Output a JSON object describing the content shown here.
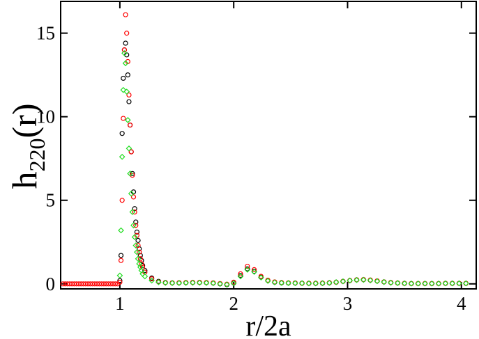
{
  "chart_data": {
    "type": "scatter",
    "xlabel": "r/2a",
    "ylabel": {
      "main": "h",
      "sub": "220",
      "tail": "(r)"
    },
    "xlim": [
      0.48,
      4.13
    ],
    "ylim": [
      -0.3,
      16.9
    ],
    "xticks": [
      1,
      2,
      3,
      4
    ],
    "yticks": [
      0,
      5,
      10,
      15
    ],
    "x": [
      0.5,
      0.52,
      0.54,
      0.56,
      0.58,
      0.6,
      0.62,
      0.64,
      0.66,
      0.68,
      0.7,
      0.72,
      0.74,
      0.76,
      0.78,
      0.8,
      0.82,
      0.84,
      0.86,
      0.88,
      0.9,
      0.92,
      0.94,
      0.96,
      0.98,
      1,
      1.01,
      1.02,
      1.03,
      1.04,
      1.05,
      1.06,
      1.07,
      1.08,
      1.09,
      1.1,
      1.11,
      1.12,
      1.13,
      1.14,
      1.15,
      1.16,
      1.17,
      1.18,
      1.19,
      1.2,
      1.22,
      1.28,
      1.34,
      1.4,
      1.46,
      1.52,
      1.58,
      1.64,
      1.7,
      1.76,
      1.82,
      1.88,
      1.94,
      2,
      2.06,
      2.12,
      2.18,
      2.24,
      2.3,
      2.36,
      2.42,
      2.48,
      2.54,
      2.6,
      2.66,
      2.72,
      2.78,
      2.84,
      2.9,
      2.96,
      3.02,
      3.08,
      3.14,
      3.2,
      3.26,
      3.32,
      3.38,
      3.44,
      3.5,
      3.56,
      3.62,
      3.68,
      3.74,
      3.8,
      3.86,
      3.92,
      3.98,
      4.04
    ],
    "series": [
      {
        "color": "#000000",
        "marker": "circle",
        "values": [
          null,
          null,
          null,
          null,
          null,
          null,
          null,
          null,
          null,
          null,
          null,
          null,
          null,
          null,
          null,
          null,
          null,
          null,
          null,
          null,
          null,
          null,
          null,
          null,
          null,
          0.2,
          1.7,
          9.0,
          12.3,
          14.0,
          14.4,
          13.7,
          12.5,
          10.9,
          9.5,
          7.9,
          6.6,
          5.5,
          4.5,
          3.7,
          3.1,
          2.6,
          2.1,
          1.7,
          1.4,
          1.1,
          0.8,
          0.35,
          0.15,
          0.08,
          0.06,
          0.06,
          0.07,
          0.08,
          0.08,
          0.07,
          0.05,
          0.0,
          -0.05,
          0.05,
          0.5,
          0.9,
          0.75,
          0.4,
          0.2,
          0.1,
          0.06,
          0.05,
          0.05,
          0.04,
          0.03,
          0.03,
          0.04,
          0.06,
          0.1,
          0.15,
          0.2,
          0.24,
          0.25,
          0.22,
          0.17,
          0.12,
          0.08,
          0.05,
          0.03,
          0.02,
          0.02,
          0.02,
          0.02,
          0.02,
          0.03,
          0.03,
          0.03,
          0.03
        ]
      },
      {
        "color": "#ff0000",
        "marker": "circle",
        "values": [
          0,
          0,
          0,
          0,
          0,
          0,
          0,
          0,
          0,
          0,
          0,
          0,
          0,
          0,
          0,
          0,
          0,
          0,
          0,
          0,
          0,
          0,
          0,
          0,
          0,
          0.1,
          1.4,
          5.0,
          9.9,
          14.0,
          16.1,
          15.0,
          13.3,
          11.3,
          9.5,
          7.9,
          6.5,
          5.2,
          4.3,
          3.5,
          2.9,
          2.3,
          1.9,
          1.5,
          1.2,
          1.0,
          0.7,
          0.3,
          0.12,
          0.07,
          0.06,
          0.07,
          0.08,
          0.09,
          0.09,
          0.08,
          0.06,
          0.02,
          -0.02,
          0.1,
          0.6,
          1.05,
          0.85,
          0.45,
          0.22,
          0.12,
          0.08,
          0.06,
          0.05,
          0.04,
          0.04,
          0.04,
          0.05,
          0.07,
          0.1,
          0.15,
          0.2,
          0.24,
          0.26,
          0.23,
          0.18,
          0.12,
          0.08,
          0.05,
          0.03,
          0.02,
          0.02,
          0.02,
          0.02,
          0.02,
          0.03,
          0.03,
          0.03,
          0.03
        ]
      },
      {
        "color": "#22dd22",
        "marker": "diamond",
        "values": [
          null,
          null,
          null,
          null,
          null,
          null,
          null,
          null,
          null,
          null,
          null,
          null,
          null,
          null,
          null,
          null,
          null,
          null,
          null,
          null,
          null,
          null,
          null,
          null,
          null,
          0.5,
          3.2,
          7.6,
          11.6,
          13.8,
          13.2,
          11.5,
          9.8,
          8.1,
          6.6,
          5.4,
          4.3,
          3.5,
          2.8,
          2.3,
          1.9,
          1.5,
          1.2,
          1.0,
          0.8,
          0.6,
          0.45,
          0.2,
          0.1,
          0.06,
          0.05,
          0.05,
          0.06,
          0.07,
          0.07,
          0.06,
          0.04,
          0.0,
          -0.04,
          0.04,
          0.45,
          0.85,
          0.72,
          0.38,
          0.18,
          0.09,
          0.06,
          0.05,
          0.04,
          0.04,
          0.03,
          0.03,
          0.04,
          0.06,
          0.1,
          0.15,
          0.2,
          0.23,
          0.24,
          0.21,
          0.16,
          0.11,
          0.07,
          0.05,
          0.03,
          0.02,
          0.02,
          0.02,
          0.02,
          0.02,
          0.03,
          0.03,
          0.03,
          0.03
        ]
      }
    ]
  }
}
